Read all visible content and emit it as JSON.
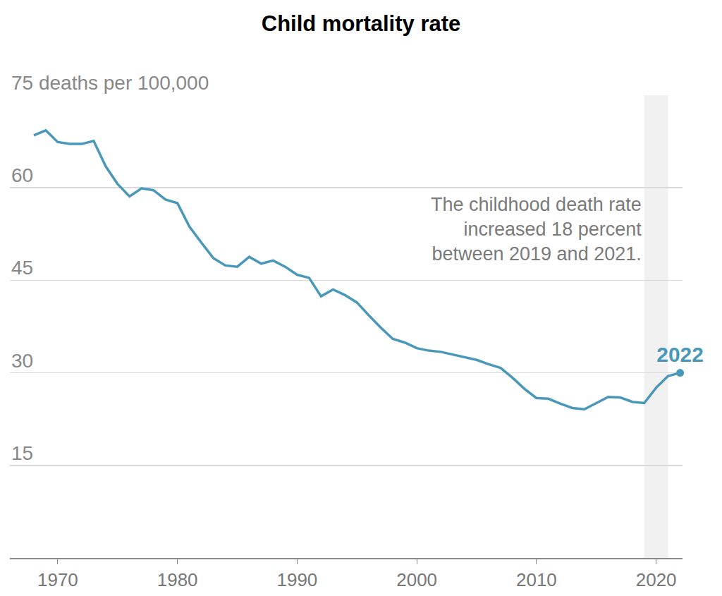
{
  "chart_data": {
    "type": "line",
    "title": "Child mortality rate",
    "annotation": [
      "The childhood death rate",
      "increased 18 percent",
      "between 2019 and 2021."
    ],
    "x": [
      1968,
      1969,
      1970,
      1971,
      1972,
      1973,
      1974,
      1975,
      1976,
      1977,
      1978,
      1979,
      1980,
      1981,
      1982,
      1983,
      1984,
      1985,
      1986,
      1987,
      1988,
      1989,
      1990,
      1991,
      1992,
      1993,
      1994,
      1995,
      1996,
      1997,
      1998,
      1999,
      2000,
      2001,
      2002,
      2003,
      2004,
      2005,
      2006,
      2007,
      2008,
      2009,
      2010,
      2011,
      2012,
      2013,
      2014,
      2015,
      2016,
      2017,
      2018,
      2019,
      2020,
      2021,
      2022
    ],
    "values": [
      68.5,
      69.3,
      67.4,
      67.1,
      67.1,
      67.6,
      63.5,
      60.6,
      58.6,
      59.9,
      59.6,
      58.1,
      57.5,
      53.7,
      51.1,
      48.6,
      47.4,
      47.2,
      48.8,
      47.7,
      48.2,
      47.2,
      45.9,
      45.4,
      42.4,
      43.5,
      42.6,
      41.4,
      39.3,
      37.3,
      35.5,
      34.9,
      34.0,
      33.6,
      33.4,
      33.0,
      32.6,
      32.1,
      31.4,
      30.8,
      29.2,
      27.4,
      25.9,
      25.8,
      25.0,
      24.3,
      24.1,
      25.1,
      26.1,
      26.0,
      25.3,
      25.1,
      27.6,
      29.5,
      30.0
    ],
    "color": "#4a98b9",
    "shaded_range": [
      2019,
      2021
    ],
    "xlim": [
      1966,
      2022.2
    ],
    "xticks": [
      1970,
      1980,
      1990,
      2000,
      2010,
      2020
    ],
    "ylim": [
      0,
      75
    ],
    "yticks": [
      15,
      30,
      45,
      60,
      {
        "value": 75,
        "label": "75 deaths per 100,000"
      }
    ],
    "grid": true
  }
}
